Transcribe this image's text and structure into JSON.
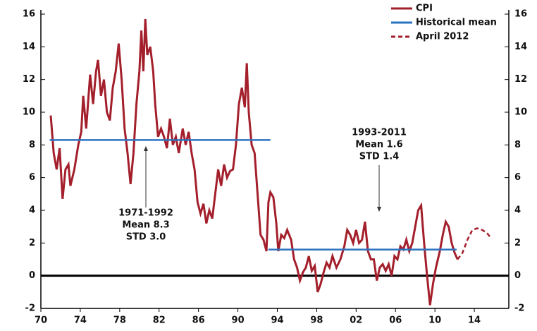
{
  "chart_data": {
    "type": "line",
    "xlim": [
      1970,
      2017.5
    ],
    "xticks": [
      {
        "value": 1970,
        "label": "70"
      },
      {
        "value": 1974,
        "label": "74"
      },
      {
        "value": 1978,
        "label": "78"
      },
      {
        "value": 1982,
        "label": "82"
      },
      {
        "value": 1986,
        "label": "86"
      },
      {
        "value": 1990,
        "label": "90"
      },
      {
        "value": 1994,
        "label": "94"
      },
      {
        "value": 1998,
        "label": "98"
      },
      {
        "value": 2002,
        "label": "02"
      },
      {
        "value": 2006,
        "label": "06"
      },
      {
        "value": 2010,
        "label": "10"
      },
      {
        "value": 2014,
        "label": "14"
      }
    ],
    "ylim": [
      -2,
      16
    ],
    "yticks": [
      -2,
      0,
      2,
      4,
      6,
      8,
      10,
      12,
      14,
      16
    ],
    "legend": "top-right",
    "series": [
      {
        "name": "CPI",
        "color": "#a31f2b",
        "style": "solid",
        "x": [
          1971.0,
          1971.3,
          1971.6,
          1971.9,
          1972.2,
          1972.5,
          1972.8,
          1973.0,
          1973.4,
          1973.8,
          1974.1,
          1974.3,
          1974.6,
          1975.0,
          1975.3,
          1975.6,
          1975.8,
          1976.1,
          1976.4,
          1976.7,
          1977.0,
          1977.3,
          1977.6,
          1977.9,
          1978.2,
          1978.5,
          1978.8,
          1979.1,
          1979.4,
          1979.7,
          1980.0,
          1980.2,
          1980.4,
          1980.6,
          1980.8,
          1981.1,
          1981.4,
          1981.6,
          1981.9,
          1982.2,
          1982.5,
          1982.8,
          1983.1,
          1983.4,
          1983.7,
          1984.0,
          1984.4,
          1984.7,
          1985.0,
          1985.3,
          1985.6,
          1985.9,
          1986.2,
          1986.5,
          1986.8,
          1987.1,
          1987.4,
          1987.7,
          1988.0,
          1988.3,
          1988.6,
          1988.9,
          1989.2,
          1989.5,
          1989.8,
          1990.1,
          1990.4,
          1990.7,
          1990.9,
          1991.1,
          1991.4,
          1991.7,
          1992.0,
          1992.3,
          1992.6,
          1992.9,
          1993.1,
          1993.3,
          1993.6,
          1993.9,
          1994.1,
          1994.4,
          1994.7,
          1995.0,
          1995.4,
          1995.7,
          1996.0,
          1996.3,
          1996.6,
          1996.9,
          1997.2,
          1997.5,
          1997.8,
          1998.1,
          1998.4,
          1998.7,
          1999.0,
          1999.3,
          1999.6,
          2000.0,
          2000.4,
          2000.8,
          2001.1,
          2001.4,
          2001.7,
          2002.0,
          2002.3,
          2002.6,
          2002.9,
          2003.2,
          2003.5,
          2003.8,
          2004.1,
          2004.4,
          2004.7,
          2005.0,
          2005.3,
          2005.6,
          2005.9,
          2006.2,
          2006.5,
          2006.8,
          2007.1,
          2007.4,
          2007.7,
          2008.0,
          2008.3,
          2008.6,
          2008.9,
          2009.2,
          2009.5,
          2009.8,
          2010.1,
          2010.5,
          2010.8,
          2011.1,
          2011.4,
          2011.7,
          2012.0,
          2012.3
        ],
        "values": [
          9.8,
          7.5,
          6.5,
          7.8,
          4.7,
          6.5,
          6.8,
          5.5,
          6.5,
          8.0,
          8.8,
          11.0,
          9.0,
          12.3,
          10.5,
          12.5,
          13.2,
          11.0,
          12.0,
          10.0,
          9.5,
          11.5,
          12.5,
          14.2,
          12.0,
          9.0,
          7.5,
          5.6,
          7.5,
          10.5,
          12.5,
          15.0,
          12.5,
          15.7,
          13.5,
          14.0,
          12.5,
          10.5,
          8.5,
          9.0,
          8.5,
          7.8,
          9.6,
          8.0,
          8.5,
          7.5,
          9.0,
          8.0,
          8.8,
          7.5,
          6.5,
          4.5,
          3.8,
          4.4,
          3.2,
          4.0,
          3.5,
          5.0,
          6.5,
          5.5,
          6.8,
          6.0,
          6.4,
          6.5,
          8.0,
          10.5,
          11.5,
          10.3,
          13.0,
          10.0,
          8.0,
          7.5,
          5.0,
          2.5,
          2.2,
          1.5,
          4.5,
          5.1,
          4.8,
          3.2,
          1.5,
          2.5,
          2.3,
          2.8,
          2.2,
          1.0,
          0.5,
          -0.3,
          0.2,
          0.5,
          1.2,
          0.3,
          0.6,
          -1.0,
          -0.5,
          0.2,
          0.8,
          0.5,
          1.2,
          0.5,
          1.0,
          1.8,
          2.8,
          2.5,
          2.0,
          2.8,
          2.0,
          2.2,
          3.3,
          1.5,
          1.0,
          1.0,
          -0.3,
          0.5,
          0.7,
          0.3,
          0.7,
          0.0,
          1.2,
          1.0,
          1.8,
          1.6,
          2.2,
          1.5,
          2.0,
          3.0,
          4.0,
          4.3,
          2.0,
          0.0,
          -1.8,
          -0.5,
          0.5,
          1.5,
          2.5,
          3.3,
          3.0,
          2.0,
          1.4,
          1.0
        ]
      },
      {
        "name": "Historical mean",
        "color": "#2b73c0",
        "style": "solid",
        "x": [
          1970.9,
          1993.3,
          1993.2,
          1993.1,
          2012.2
        ],
        "values": [
          8.3,
          8.3,
          null,
          1.6,
          1.6
        ]
      },
      {
        "name": "April 2012",
        "color": "#a31f2b",
        "style": "dashed",
        "x": [
          2012.3,
          2012.8,
          2013.3,
          2013.8,
          2014.3,
          2014.8,
          2015.3,
          2015.7
        ],
        "values": [
          1.0,
          1.4,
          2.2,
          2.8,
          2.9,
          2.8,
          2.6,
          2.3
        ]
      }
    ],
    "annotations": [
      [
        "1971-1992",
        "Mean 8.3",
        "STD 3.0"
      ],
      [
        "1993-2011",
        "Mean 1.6",
        "STD 1.4"
      ]
    ]
  }
}
